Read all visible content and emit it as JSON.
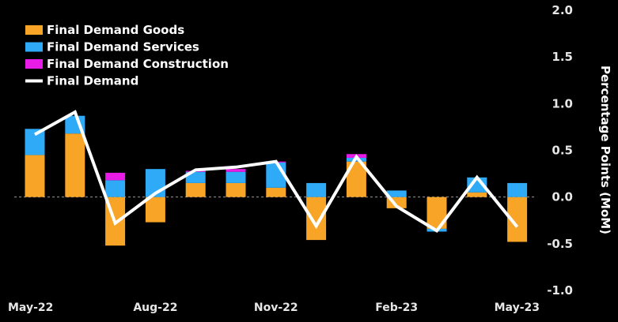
{
  "chart_data": {
    "type": "bar",
    "stacked": true,
    "title": "",
    "xlabel": "",
    "ylabel": "Percentage Points (MoM)",
    "ylim": [
      -1.0,
      2.0
    ],
    "yticks": [
      "2.0",
      "1.5",
      "1.0",
      "0.5",
      "0.0",
      "-0.5",
      "-1.0"
    ],
    "y_axis_side": "right",
    "grid": false,
    "legend_position": "top-left",
    "categories": [
      "May-22",
      "Jun-22",
      "Jul-22",
      "Aug-22",
      "Sep-22",
      "Oct-22",
      "Nov-22",
      "Dec-22",
      "Jan-23",
      "Feb-23",
      "Mar-23",
      "Apr-23",
      "May-23"
    ],
    "x_tick_labels": [
      "May-22",
      "Aug-22",
      "Nov-22",
      "Feb-23",
      "May-23"
    ],
    "series": [
      {
        "name": "Final Demand Goods",
        "kind": "bar",
        "color": "#f7a427",
        "values": [
          0.45,
          0.68,
          -0.52,
          -0.27,
          0.15,
          0.15,
          0.1,
          -0.46,
          0.38,
          -0.12,
          -0.34,
          0.05,
          -0.48
        ]
      },
      {
        "name": "Final Demand Services",
        "kind": "bar",
        "color": "#2eaaf7",
        "values": [
          0.28,
          0.19,
          0.18,
          0.3,
          0.12,
          0.12,
          0.27,
          0.15,
          0.04,
          0.07,
          -0.03,
          0.16,
          0.15
        ]
      },
      {
        "name": "Final Demand Construction",
        "kind": "bar",
        "color": "#e81ce6",
        "values": [
          0.0,
          0.0,
          0.08,
          0.0,
          0.01,
          0.03,
          0.01,
          0.0,
          0.04,
          0.0,
          0.0,
          0.0,
          0.0
        ]
      },
      {
        "name": "Final Demand",
        "kind": "line",
        "color": "#ffffff",
        "values": [
          0.67,
          0.91,
          -0.28,
          0.04,
          0.29,
          0.32,
          0.38,
          -0.31,
          0.43,
          -0.1,
          -0.36,
          0.21,
          -0.32
        ]
      }
    ]
  }
}
